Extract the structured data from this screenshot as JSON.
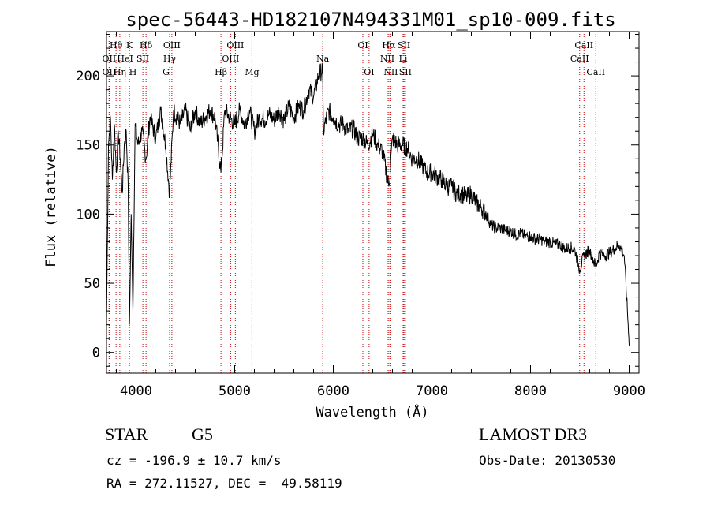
{
  "chart_data": {
    "type": "line",
    "title": "spec-56443-HD182107N494331M01_sp10-009.fits",
    "xlabel": "Wavelength (Å)",
    "ylabel": "Flux (relative)",
    "xlim": [
      3700,
      9100
    ],
    "ylim": [
      -15,
      232
    ],
    "xticks": [
      4000,
      5000,
      6000,
      7000,
      8000,
      9000
    ],
    "yticks": [
      0,
      50,
      100,
      150,
      200
    ],
    "grid": false,
    "series": [
      {
        "name": "spectrum",
        "x": [
          3700,
          3720,
          3740,
          3760,
          3780,
          3800,
          3820,
          3840,
          3860,
          3880,
          3900,
          3920,
          3933,
          3950,
          3968,
          3990,
          4020,
          4060,
          4101,
          4140,
          4200,
          4250,
          4300,
          4340,
          4380,
          4450,
          4500,
          4550,
          4600,
          4650,
          4700,
          4750,
          4800,
          4861,
          4900,
          4950,
          5000,
          5050,
          5100,
          5150,
          5200,
          5250,
          5300,
          5350,
          5400,
          5450,
          5500,
          5550,
          5600,
          5650,
          5700,
          5750,
          5800,
          5850,
          5890,
          5900,
          5950,
          6000,
          6050,
          6100,
          6150,
          6200,
          6250,
          6300,
          6350,
          6400,
          6450,
          6500,
          6563,
          6600,
          6650,
          6700,
          6750,
          6800,
          6850,
          6900,
          6950,
          7000,
          7050,
          7100,
          7150,
          7200,
          7250,
          7300,
          7350,
          7400,
          7450,
          7500,
          7550,
          7600,
          7650,
          7700,
          7750,
          7800,
          7850,
          7900,
          7950,
          8000,
          8050,
          8100,
          8150,
          8200,
          8250,
          8300,
          8350,
          8400,
          8450,
          8498,
          8542,
          8600,
          8662,
          8700,
          8750,
          8800,
          8850,
          8900,
          8950,
          8990,
          9000
        ],
        "y": [
          20,
          150,
          170,
          125,
          165,
          130,
          160,
          140,
          115,
          150,
          160,
          120,
          20,
          100,
          30,
          165,
          150,
          160,
          140,
          170,
          155,
          175,
          150,
          115,
          175,
          165,
          175,
          160,
          175,
          165,
          170,
          175,
          170,
          130,
          175,
          170,
          165,
          175,
          165,
          175,
          160,
          170,
          168,
          172,
          168,
          175,
          168,
          178,
          170,
          178,
          175,
          190,
          185,
          200,
          205,
          160,
          175,
          170,
          165,
          165,
          160,
          162,
          155,
          155,
          150,
          158,
          150,
          145,
          120,
          155,
          150,
          150,
          148,
          140,
          140,
          135,
          130,
          130,
          127,
          125,
          120,
          120,
          115,
          115,
          112,
          115,
          108,
          105,
          100,
          92,
          90,
          90,
          88,
          88,
          85,
          86,
          84,
          84,
          82,
          82,
          80,
          80,
          78,
          78,
          75,
          76,
          74,
          60,
          70,
          74,
          62,
          72,
          70,
          72,
          75,
          78,
          70,
          20,
          5
        ]
      }
    ],
    "line_markers": [
      {
        "label": "Hθ",
        "x": 3797,
        "row": 0
      },
      {
        "label": "OII",
        "x": 3727,
        "row": 1
      },
      {
        "label": "OII",
        "x": 3727,
        "row": 2
      },
      {
        "label": "Hη",
        "x": 3835,
        "row": 2
      },
      {
        "label": "K",
        "x": 3933,
        "row": 0
      },
      {
        "label": "HeI",
        "x": 3889,
        "row": 1
      },
      {
        "label": "H",
        "x": 3968,
        "row": 2
      },
      {
        "label": "Hδ",
        "x": 4101,
        "row": 0
      },
      {
        "label": "SII",
        "x": 4069,
        "row": 1
      },
      {
        "label": "OIII",
        "x": 4363,
        "row": 0
      },
      {
        "label": "Hγ",
        "x": 4340,
        "row": 1
      },
      {
        "label": "G",
        "x": 4304,
        "row": 2
      },
      {
        "label": "Hβ",
        "x": 4861,
        "row": 2
      },
      {
        "label": "OIII",
        "x": 4959,
        "row": 1
      },
      {
        "label": "OIII",
        "x": 5007,
        "row": 0
      },
      {
        "label": "Mg",
        "x": 5175,
        "row": 2
      },
      {
        "label": "Na",
        "x": 5893,
        "row": 1
      },
      {
        "label": "OI",
        "x": 6300,
        "row": 0
      },
      {
        "label": "OI",
        "x": 6363,
        "row": 2
      },
      {
        "label": "Hα",
        "x": 6563,
        "row": 0
      },
      {
        "label": "NII",
        "x": 6548,
        "row": 1
      },
      {
        "label": "NII",
        "x": 6583,
        "row": 2
      },
      {
        "label": "SII",
        "x": 6717,
        "row": 0
      },
      {
        "label": "Li",
        "x": 6708,
        "row": 1
      },
      {
        "label": "SII",
        "x": 6731,
        "row": 2
      },
      {
        "label": "CaII",
        "x": 8542,
        "row": 0
      },
      {
        "label": "CaII",
        "x": 8498,
        "row": 1
      },
      {
        "label": "CaII",
        "x": 8662,
        "row": 2
      }
    ]
  },
  "info": {
    "object_class": "STAR",
    "subclass": "G5",
    "redshift": "cz = -196.9 ± 10.7 km/s",
    "coords": "RA = 272.11527, DEC =  49.58119",
    "survey": "LAMOST DR3",
    "obs_date": "Obs-Date: 20130530"
  }
}
